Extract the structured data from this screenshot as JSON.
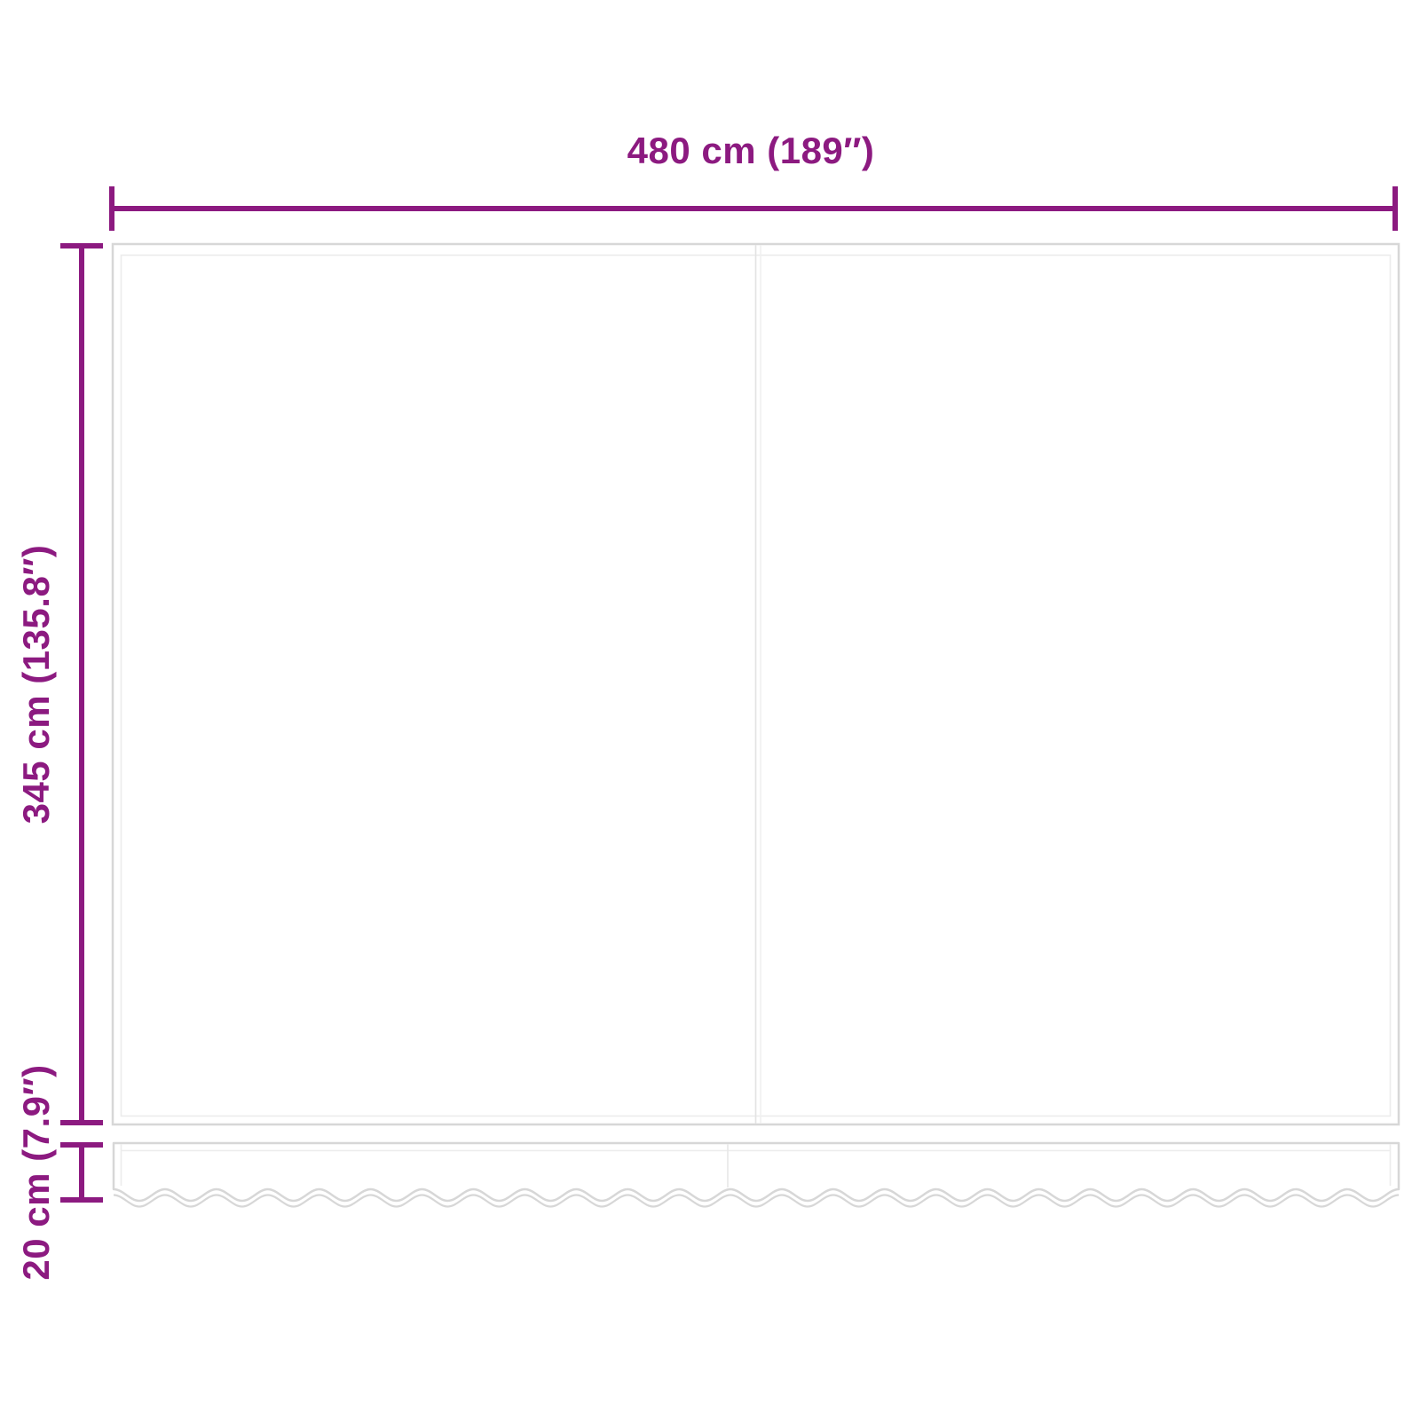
{
  "diagram": {
    "type": "product-dimension-diagram",
    "subject": "awning-replacement-fabric-with-valance",
    "colors": {
      "accent": "#8C1A80",
      "fabric_outline": "#D7D7D7",
      "fabric_inner_line": "#ECECEC",
      "background": "#FFFFFF"
    },
    "dimensions": {
      "width": {
        "label": "480 cm (189″)",
        "value_cm": 480,
        "value_in": 189
      },
      "height": {
        "label": "345 cm (135.8″)",
        "value_cm": 345,
        "value_in": 135.8
      },
      "valance": {
        "label": "20 cm (7.9″)",
        "value_cm": 20,
        "value_in": 7.9
      }
    }
  }
}
